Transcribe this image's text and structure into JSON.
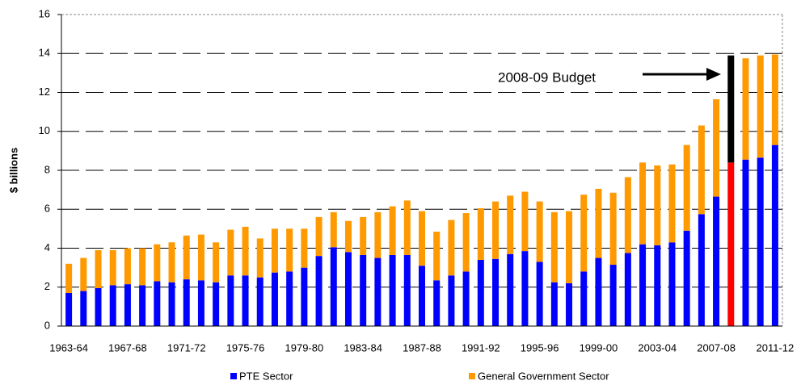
{
  "chart_data": {
    "type": "stacked_bar",
    "y_label": "$ billions",
    "annotation": "2008-09 Budget",
    "categories": [
      "1963-64",
      null,
      null,
      null,
      "1967-68",
      null,
      null,
      null,
      "1971-72",
      null,
      null,
      null,
      "1975-76",
      null,
      null,
      null,
      "1979-80",
      null,
      null,
      null,
      "1983-84",
      null,
      null,
      null,
      "1987-88",
      null,
      null,
      null,
      "1991-92",
      null,
      null,
      null,
      "1995-96",
      null,
      null,
      null,
      "1999-00",
      null,
      null,
      null,
      "2003-04",
      null,
      null,
      null,
      "2007-08",
      null,
      null,
      null,
      "2011-12"
    ],
    "series": [
      {
        "name": "PTE Sector",
        "color": "#0000ff",
        "values": [
          1.7,
          1.8,
          1.95,
          2.1,
          2.15,
          2.1,
          2.3,
          2.25,
          2.4,
          2.35,
          2.25,
          2.6,
          2.6,
          2.5,
          2.75,
          2.8,
          3.0,
          3.6,
          4.05,
          3.8,
          3.65,
          3.5,
          3.65,
          3.65,
          3.1,
          2.35,
          2.6,
          2.8,
          3.4,
          3.45,
          3.7,
          3.85,
          3.3,
          2.25,
          2.2,
          2.8,
          3.5,
          3.15,
          3.75,
          4.2,
          4.15,
          4.3,
          4.9,
          5.75,
          6.65,
          8.4,
          8.55,
          8.65,
          9.3
        ],
        "colors": [
          "#0000ff",
          "#0000ff",
          "#0000ff",
          "#0000ff",
          "#0000ff",
          "#0000ff",
          "#0000ff",
          "#0000ff",
          "#0000ff",
          "#0000ff",
          "#0000ff",
          "#0000ff",
          "#0000ff",
          "#0000ff",
          "#0000ff",
          "#0000ff",
          "#0000ff",
          "#0000ff",
          "#0000ff",
          "#0000ff",
          "#0000ff",
          "#0000ff",
          "#0000ff",
          "#0000ff",
          "#0000ff",
          "#0000ff",
          "#0000ff",
          "#0000ff",
          "#0000ff",
          "#0000ff",
          "#0000ff",
          "#0000ff",
          "#0000ff",
          "#0000ff",
          "#0000ff",
          "#0000ff",
          "#0000ff",
          "#0000ff",
          "#0000ff",
          "#0000ff",
          "#0000ff",
          "#0000ff",
          "#0000ff",
          "#0000ff",
          "#0000ff",
          "#ff0000",
          "#0000ff",
          "#0000ff",
          "#0000ff"
        ]
      },
      {
        "name": "General Government Sector",
        "color": "#ff9900",
        "values": [
          1.5,
          1.7,
          1.95,
          1.8,
          1.85,
          1.9,
          1.9,
          2.05,
          2.25,
          2.35,
          2.05,
          2.35,
          2.5,
          2.0,
          2.25,
          2.2,
          2.0,
          2.0,
          1.8,
          1.6,
          1.95,
          2.35,
          2.5,
          2.8,
          2.8,
          2.5,
          2.85,
          3.0,
          2.65,
          2.95,
          3.0,
          3.05,
          3.1,
          3.6,
          3.7,
          3.95,
          3.55,
          3.7,
          3.9,
          4.2,
          4.1,
          4.0,
          4.4,
          4.55,
          5.0,
          5.5,
          5.2,
          5.25,
          4.65
        ],
        "colors": [
          "#ff9900",
          "#ff9900",
          "#ff9900",
          "#ff9900",
          "#ff9900",
          "#ff9900",
          "#ff9900",
          "#ff9900",
          "#ff9900",
          "#ff9900",
          "#ff9900",
          "#ff9900",
          "#ff9900",
          "#ff9900",
          "#ff9900",
          "#ff9900",
          "#ff9900",
          "#ff9900",
          "#ff9900",
          "#ff9900",
          "#ff9900",
          "#ff9900",
          "#ff9900",
          "#ff9900",
          "#ff9900",
          "#ff9900",
          "#ff9900",
          "#ff9900",
          "#ff9900",
          "#ff9900",
          "#ff9900",
          "#ff9900",
          "#ff9900",
          "#ff9900",
          "#ff9900",
          "#ff9900",
          "#ff9900",
          "#ff9900",
          "#ff9900",
          "#ff9900",
          "#ff9900",
          "#ff9900",
          "#ff9900",
          "#ff9900",
          "#ff9900",
          "#000000",
          "#ff9900",
          "#ff9900",
          "#ff9900"
        ]
      }
    ],
    "ylim": [
      0,
      16
    ],
    "yticks": [
      0,
      2,
      4,
      6,
      8,
      10,
      12,
      14,
      16
    ],
    "grid": true,
    "legend": "bottom"
  }
}
